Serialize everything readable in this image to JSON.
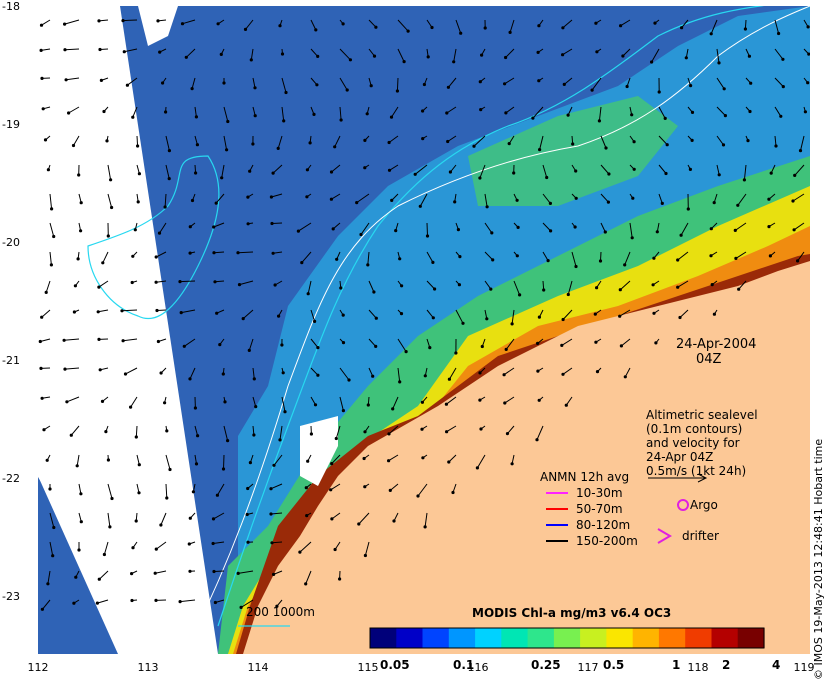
{
  "map": {
    "lat_ticks": [
      "-18",
      "-19",
      "-20",
      "-21",
      "-22",
      "-23"
    ],
    "lon_ticks": [
      "112",
      "113",
      "114",
      "115",
      "116",
      "117",
      "118",
      "119"
    ],
    "date": "24-Apr-2004",
    "time": "04Z",
    "altimetric": {
      "lines": [
        "Altimetric sealevel",
        "(0.1m contours)",
        "and velocity for",
        "24-Apr 04Z"
      ],
      "scale_label": "0.5m/s (1kt 24h)"
    },
    "anmn": {
      "title": "ANMN 12h avg",
      "items": [
        {
          "label": "10-30m",
          "color": "#ff22ff"
        },
        {
          "label": "50-70m",
          "color": "#ff0000"
        },
        {
          "label": "80-120m",
          "color": "#0000ff"
        },
        {
          "label": "150-200m",
          "color": "#000000"
        }
      ]
    },
    "argo_label": "Argo",
    "drifter_label": "drifter",
    "bathy_label": "200  1000m",
    "colorbar": {
      "title": "MODIS Chl-a mg/m3 v6.4 OC3",
      "ticks": [
        "0.05",
        "0.1",
        "0.25",
        "0.5",
        "1",
        "2",
        "4"
      ],
      "colors": [
        "#00007a",
        "#0000c8",
        "#0044ff",
        "#0096ff",
        "#00d2ff",
        "#00e6b4",
        "#2ee68c",
        "#78f050",
        "#c8f020",
        "#fae600",
        "#ffb400",
        "#ff7800",
        "#f03c00",
        "#b40000",
        "#780000"
      ]
    },
    "credit": "© IMOS 19-May-2013 12:48:41 Hobart time"
  }
}
